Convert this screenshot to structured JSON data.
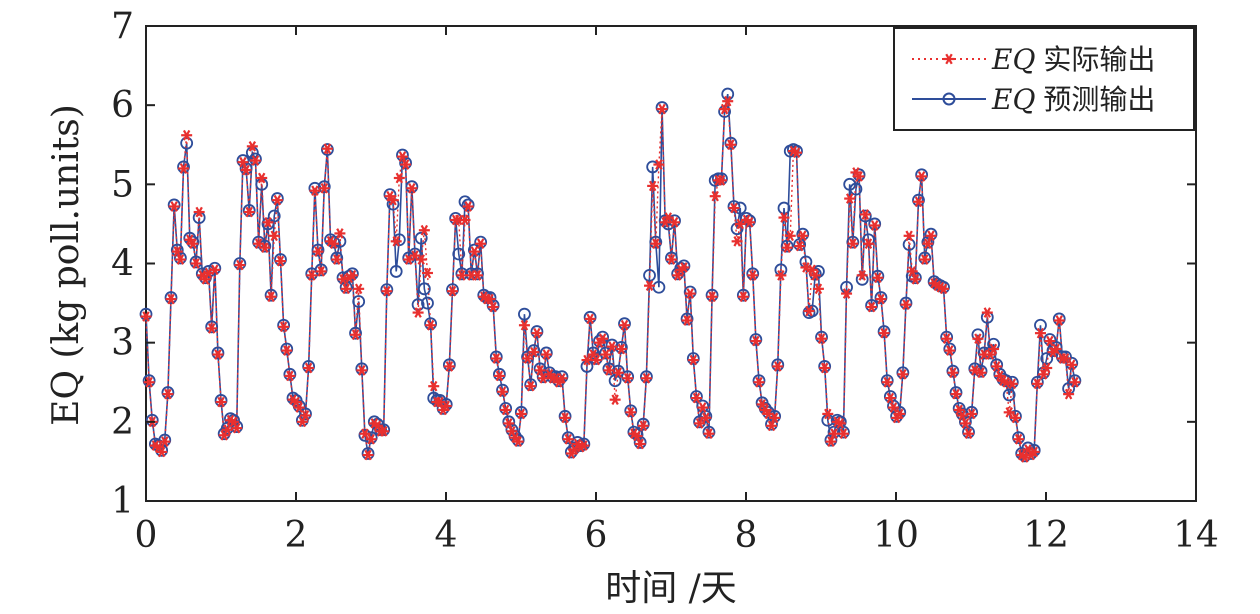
{
  "chart_data": {
    "type": "line",
    "title": "",
    "xlabel": "时间 /天",
    "ylabel": "EQ (kg poll.units)",
    "xlim": [
      0,
      14
    ],
    "ylim": [
      1,
      7
    ],
    "xticks": [
      0,
      2,
      4,
      6,
      8,
      10,
      12,
      14
    ],
    "yticks": [
      1,
      2,
      3,
      4,
      5,
      6,
      7
    ],
    "grid": false,
    "legend_position": "top-right",
    "sample_interval_days": 0.0417,
    "series": [
      {
        "name": "EQ 实际输出",
        "name_math": "EQ",
        "name_text": "实际输出",
        "color": "#e8302f",
        "line_style": "dotted",
        "marker": "asterisk",
        "values": [
          3.33,
          2.5,
          2.0,
          1.7,
          1.68,
          1.62,
          1.75,
          2.35,
          3.55,
          4.72,
          4.15,
          4.05,
          5.2,
          5.62,
          4.3,
          4.25,
          4.0,
          4.65,
          3.85,
          3.8,
          3.88,
          3.18,
          3.92,
          2.85,
          2.25,
          1.83,
          1.9,
          2.02,
          2.0,
          1.92,
          3.98,
          5.28,
          5.18,
          4.65,
          5.48,
          5.3,
          4.25,
          5.08,
          4.2,
          4.52,
          3.58,
          4.35,
          4.8,
          4.03,
          3.2,
          2.9,
          2.58,
          2.28,
          2.25,
          2.18,
          2.0,
          2.08,
          2.68,
          3.85,
          4.92,
          4.15,
          3.9,
          4.95,
          5.45,
          4.28,
          4.25,
          4.05,
          4.38,
          3.8,
          3.68,
          3.82,
          3.85,
          3.1,
          3.68,
          2.65,
          1.85,
          1.58,
          1.78,
          1.98,
          1.95,
          1.88,
          1.88,
          3.65,
          4.85,
          4.8,
          4.28,
          5.08,
          5.35,
          5.25,
          4.05,
          4.95,
          4.1,
          3.38,
          4.05,
          4.42,
          3.88,
          3.22,
          2.45,
          2.25,
          2.25,
          2.15,
          2.2,
          2.7,
          3.65,
          4.55,
          4.55,
          3.85,
          4.55,
          4.72,
          3.85,
          4.15,
          3.85,
          4.25,
          3.58,
          3.55,
          3.55,
          3.45,
          2.8,
          2.58,
          2.38,
          2.15,
          1.98,
          1.88,
          1.8,
          1.75,
          2.1,
          3.22,
          2.8,
          2.45,
          2.88,
          3.12,
          2.65,
          2.55,
          2.85,
          2.6,
          2.55,
          2.55,
          2.5,
          2.55,
          2.05,
          1.78,
          1.6,
          1.65,
          1.72,
          1.68,
          1.7,
          2.78,
          3.3,
          2.85,
          2.78,
          3.0,
          3.05,
          2.85,
          2.65,
          2.95,
          2.28,
          2.62,
          2.92,
          3.22,
          2.55,
          2.12,
          1.85,
          1.82,
          1.72,
          1.95,
          2.55,
          3.72,
          4.98,
          4.25,
          5.25,
          5.95,
          4.52,
          4.58,
          4.05,
          4.52,
          3.85,
          3.92,
          3.95,
          3.28,
          3.62,
          2.78,
          2.3,
          1.98,
          2.18,
          2.05,
          1.85,
          3.58,
          4.85,
          5.05,
          5.05,
          5.95,
          6.05,
          5.5,
          4.7,
          4.28,
          4.5,
          3.58,
          4.55,
          4.52,
          3.85,
          3.02,
          2.5,
          2.22,
          2.15,
          2.1,
          1.95,
          2.05,
          2.7,
          3.85,
          4.58,
          4.2,
          4.35,
          5.42,
          5.4,
          4.22,
          4.35,
          3.95,
          3.4,
          3.92,
          3.85,
          3.68,
          3.05,
          2.68,
          2.1,
          1.75,
          1.85,
          2.0,
          1.98,
          1.85,
          3.62,
          4.82,
          4.25,
          5.15,
          5.1,
          3.85,
          4.62,
          4.25,
          3.45,
          4.48,
          3.82,
          3.55,
          3.12,
          2.5,
          2.3,
          2.18,
          2.05,
          2.1,
          2.6,
          3.48,
          4.35,
          3.9,
          3.8,
          4.78,
          5.1,
          4.05,
          4.25,
          4.35,
          3.75,
          3.72,
          3.7,
          3.68,
          3.05,
          2.9,
          2.62,
          2.35,
          2.15,
          2.08,
          1.98,
          1.85,
          2.1,
          2.65,
          3.05,
          2.62,
          2.85,
          3.38,
          2.85,
          2.92,
          2.7,
          2.58,
          2.52,
          2.5,
          2.12,
          2.48,
          2.05,
          1.78,
          1.58,
          1.55,
          1.65,
          1.58,
          1.62,
          2.48,
          3.12,
          2.6,
          2.68,
          3.02,
          2.88,
          2.92,
          3.28,
          2.8,
          2.8,
          2.35,
          2.72,
          2.5
        ]
      },
      {
        "name": "EQ 预测输出",
        "name_math": "EQ",
        "name_text": "预测输出",
        "color": "#2e4d9a",
        "line_style": "solid",
        "marker": "circle",
        "values": [
          3.36,
          2.52,
          2.02,
          1.72,
          1.7,
          1.64,
          1.77,
          2.37,
          3.57,
          4.74,
          4.17,
          4.07,
          5.22,
          5.52,
          4.32,
          4.27,
          4.02,
          4.58,
          3.87,
          3.82,
          3.9,
          3.2,
          3.94,
          2.87,
          2.27,
          1.85,
          1.92,
          2.04,
          2.02,
          1.94,
          4.0,
          5.3,
          5.2,
          4.67,
          5.4,
          5.32,
          4.27,
          5.0,
          4.22,
          4.5,
          3.6,
          4.6,
          4.82,
          4.05,
          3.22,
          2.92,
          2.6,
          2.3,
          2.27,
          2.2,
          2.02,
          2.1,
          2.7,
          3.87,
          4.95,
          4.17,
          3.92,
          4.97,
          5.44,
          4.3,
          4.27,
          4.07,
          4.28,
          3.82,
          3.7,
          3.84,
          3.87,
          3.12,
          3.52,
          2.67,
          1.83,
          1.6,
          1.8,
          2.0,
          1.97,
          1.9,
          1.9,
          3.67,
          4.87,
          4.75,
          3.9,
          4.3,
          5.37,
          5.27,
          4.07,
          4.97,
          4.12,
          3.48,
          4.32,
          3.68,
          3.5,
          3.24,
          2.3,
          2.27,
          2.27,
          2.17,
          2.22,
          2.72,
          3.67,
          4.57,
          4.12,
          3.87,
          4.78,
          4.74,
          3.87,
          4.17,
          3.87,
          4.27,
          3.6,
          3.57,
          3.57,
          3.47,
          2.82,
          2.6,
          2.4,
          2.17,
          2.0,
          1.9,
          1.82,
          1.77,
          2.12,
          3.36,
          2.82,
          2.47,
          2.9,
          3.14,
          2.67,
          2.57,
          2.87,
          2.62,
          2.57,
          2.57,
          2.52,
          2.57,
          2.07,
          1.8,
          1.62,
          1.67,
          1.74,
          1.7,
          1.72,
          2.7,
          3.32,
          2.87,
          2.8,
          3.02,
          3.07,
          2.87,
          2.67,
          2.97,
          2.52,
          2.64,
          2.94,
          3.24,
          2.57,
          2.14,
          1.87,
          1.84,
          1.74,
          1.97,
          2.57,
          3.85,
          5.22,
          4.27,
          3.7,
          5.97,
          4.54,
          4.5,
          4.07,
          4.54,
          3.87,
          3.94,
          3.97,
          3.3,
          3.64,
          2.8,
          2.32,
          2.0,
          2.2,
          2.07,
          1.87,
          3.6,
          5.05,
          5.07,
          5.07,
          5.92,
          6.14,
          5.52,
          4.72,
          4.44,
          4.7,
          3.6,
          4.57,
          4.54,
          3.87,
          3.04,
          2.52,
          2.24,
          2.17,
          2.12,
          1.97,
          2.07,
          2.72,
          3.92,
          4.7,
          4.22,
          5.42,
          5.44,
          5.42,
          4.24,
          4.37,
          4.02,
          3.38,
          3.4,
          3.87,
          3.9,
          3.07,
          2.7,
          2.02,
          1.77,
          1.87,
          2.02,
          2.0,
          1.87,
          3.7,
          5.0,
          4.27,
          4.94,
          5.12,
          3.8,
          4.6,
          4.3,
          3.47,
          4.5,
          3.84,
          3.57,
          3.14,
          2.52,
          2.32,
          2.2,
          2.07,
          2.12,
          2.62,
          3.5,
          4.24,
          3.84,
          3.82,
          4.8,
          5.12,
          4.07,
          4.27,
          4.37,
          3.77,
          3.74,
          3.72,
          3.7,
          3.07,
          2.92,
          2.64,
          2.37,
          2.17,
          2.1,
          2.0,
          1.87,
          2.12,
          2.67,
          3.1,
          2.64,
          2.87,
          3.32,
          2.87,
          2.98,
          2.72,
          2.6,
          2.54,
          2.52,
          2.34,
          2.5,
          2.07,
          1.8,
          1.6,
          1.57,
          1.67,
          1.6,
          1.64,
          2.5,
          3.22,
          2.62,
          2.8,
          3.04,
          2.9,
          2.94,
          3.3,
          2.82,
          2.82,
          2.42,
          2.74,
          2.52
        ]
      }
    ]
  }
}
